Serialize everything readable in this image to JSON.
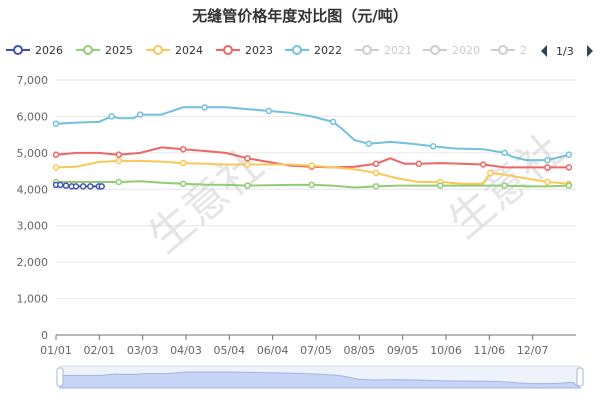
{
  "chart_data": {
    "type": "line",
    "title": "无缝管价格年度对比图（元/吨）",
    "ylim": [
      0,
      7000
    ],
    "y_ticks": [
      "0",
      "1,000",
      "2,000",
      "3,000",
      "4,000",
      "5,000",
      "6,000",
      "7,000"
    ],
    "x_ticks": [
      "01/01",
      "02/01",
      "03/03",
      "04/03",
      "05/04",
      "06/04",
      "07/05",
      "08/05",
      "09/05",
      "10/06",
      "11/06",
      "12/07"
    ],
    "grid": "horizontal",
    "legend_placement": "top",
    "legend_page": "1/3",
    "watermark": "生意社",
    "series": [
      {
        "name": "2026",
        "color": "#3f51b5",
        "active": true,
        "x": [
          1,
          4,
          8,
          12,
          15,
          20,
          25,
          31,
          33
        ],
        "y": [
          4120,
          4120,
          4100,
          4080,
          4080,
          4080,
          4080,
          4080,
          4080
        ]
      },
      {
        "name": "2025",
        "color": "#91cc75",
        "active": true,
        "x": [
          1,
          15,
          31,
          45,
          60,
          75,
          90,
          105,
          120,
          135,
          150,
          165,
          180,
          195,
          210,
          225,
          240,
          255,
          270,
          285,
          300,
          315,
          330,
          345,
          360
        ],
        "y": [
          4200,
          4200,
          4200,
          4200,
          4220,
          4180,
          4150,
          4130,
          4120,
          4100,
          4110,
          4120,
          4120,
          4100,
          4050,
          4080,
          4100,
          4100,
          4100,
          4100,
          4100,
          4100,
          4080,
          4080,
          4100
        ]
      },
      {
        "name": "2024",
        "color": "#fac858",
        "active": true,
        "x": [
          1,
          15,
          31,
          45,
          60,
          75,
          90,
          105,
          120,
          135,
          150,
          165,
          180,
          195,
          210,
          225,
          240,
          255,
          270,
          285,
          300,
          305,
          315,
          330,
          345,
          360
        ],
        "y": [
          4600,
          4620,
          4750,
          4780,
          4780,
          4760,
          4720,
          4700,
          4680,
          4680,
          4680,
          4680,
          4650,
          4600,
          4550,
          4450,
          4300,
          4200,
          4200,
          4150,
          4150,
          4450,
          4400,
          4300,
          4200,
          4150
        ]
      },
      {
        "name": "2023",
        "color": "#ee6666",
        "active": true,
        "x": [
          1,
          15,
          31,
          45,
          60,
          75,
          90,
          105,
          120,
          135,
          150,
          165,
          180,
          195,
          210,
          225,
          235,
          245,
          255,
          270,
          285,
          300,
          315,
          330,
          345,
          360
        ],
        "y": [
          4950,
          5000,
          5000,
          4950,
          5000,
          5150,
          5100,
          5050,
          5000,
          4850,
          4750,
          4650,
          4620,
          4600,
          4620,
          4700,
          4850,
          4700,
          4700,
          4720,
          4700,
          4680,
          4600,
          4600,
          4600,
          4600
        ]
      },
      {
        "name": "2022",
        "color": "#73c0de",
        "active": true,
        "x": [
          1,
          15,
          31,
          40,
          45,
          55,
          60,
          75,
          90,
          105,
          120,
          135,
          150,
          165,
          180,
          195,
          200,
          210,
          220,
          235,
          250,
          265,
          280,
          300,
          315,
          320,
          330,
          345,
          360
        ],
        "y": [
          5800,
          5830,
          5850,
          6000,
          5950,
          5950,
          6050,
          6050,
          6250,
          6250,
          6250,
          6200,
          6150,
          6100,
          6000,
          5850,
          5700,
          5350,
          5250,
          5300,
          5250,
          5180,
          5120,
          5100,
          5000,
          4900,
          4800,
          4800,
          4950
        ]
      }
    ],
    "inactive_series": [
      "2021",
      "2020",
      "2"
    ]
  }
}
